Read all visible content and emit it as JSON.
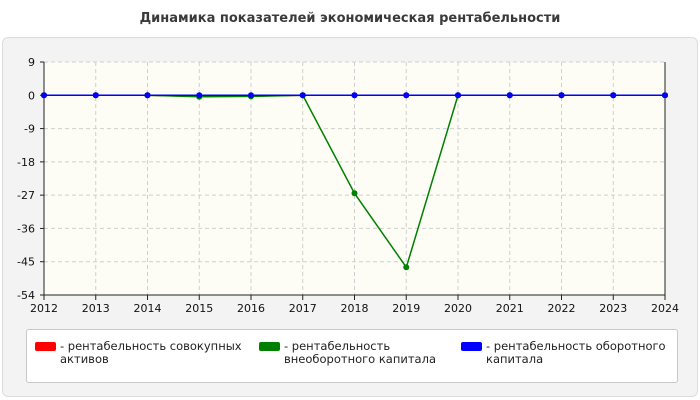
{
  "chart_data": {
    "type": "line",
    "title": "Динамика показателей экономическая рентабельности",
    "xlabel": "",
    "ylabel": "",
    "x": [
      "2012",
      "2013",
      "2014",
      "2015",
      "2016",
      "2017",
      "2018",
      "2019",
      "2020",
      "2021",
      "2022",
      "2023",
      "2024"
    ],
    "ylim": [
      -54,
      9
    ],
    "yticks": [
      9,
      0,
      -9,
      -18,
      -27,
      -36,
      -45,
      -54
    ],
    "grid": true,
    "legend_position": "bottom",
    "series": [
      {
        "name": "рентабельность совокупных активов",
        "color": "#ff0000",
        "values": [
          0,
          0,
          0,
          -0.3,
          -0.2,
          0,
          0,
          0,
          0,
          0,
          0,
          0,
          0
        ]
      },
      {
        "name": "рентабельность внеоборотного капитала",
        "color": "#008000",
        "values": [
          0,
          0,
          0,
          -0.4,
          -0.3,
          0,
          -26.5,
          -46.5,
          0,
          0,
          0,
          0,
          0
        ]
      },
      {
        "name": "рентабельность оборотного капитала",
        "color": "#0000ff",
        "values": [
          0,
          0,
          0,
          0,
          0,
          0,
          0,
          0,
          0,
          0,
          0,
          0,
          0
        ]
      }
    ]
  },
  "legend": {
    "items": [
      {
        "label": "- рентабельность совокупных активов",
        "color": "#ff0000"
      },
      {
        "label": "- рентабельность внеоборотного капитала",
        "color": "#008000"
      },
      {
        "label": "- рентабельность оборотного капитала",
        "color": "#0000ff"
      }
    ]
  }
}
